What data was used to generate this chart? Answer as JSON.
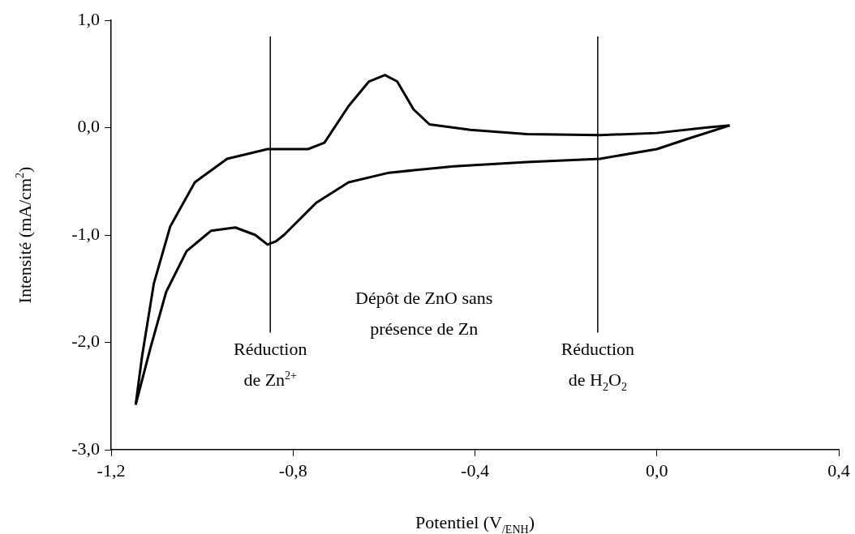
{
  "chart_data": {
    "type": "line",
    "xlabel": "Potentiel (V$_{/ENH}$)",
    "ylabel": "Intensité (mA/cm$^{2}$)",
    "xlim": [
      -1.2,
      0.4
    ],
    "xticks": [
      {
        "value": -1.2,
        "label": "-1,2"
      },
      {
        "value": -0.8,
        "label": "-0,8"
      },
      {
        "value": -0.4,
        "label": "-0,4"
      },
      {
        "value": 0,
        "label": "0,0"
      },
      {
        "value": 0.4,
        "label": "0,4"
      }
    ],
    "ylim": [
      -3,
      1
    ],
    "yticks": [
      {
        "value": -3,
        "label": "-3,0"
      },
      {
        "value": -2,
        "label": "-2,0"
      },
      {
        "value": -1,
        "label": "-1,0"
      },
      {
        "value": 0,
        "label": "0,0"
      },
      {
        "value": 1,
        "label": "1,0"
      }
    ],
    "grid": false,
    "legend": false,
    "marker": "none",
    "line_style": "solid",
    "series": [
      {
        "color": "#000000",
        "x": [
          -1.146,
          -1.132,
          -1.106,
          -1.07,
          -1.016,
          -0.945,
          -0.856,
          -0.767,
          -0.731,
          -0.678,
          -0.633,
          -0.598,
          -0.571,
          -0.535,
          -0.5,
          -0.41,
          -0.286,
          -0.125,
          0.0,
          0.107,
          0.16
        ],
        "values": [
          -2.58,
          -2.13,
          -1.45,
          -0.92,
          -0.51,
          -0.29,
          -0.2,
          -0.2,
          -0.14,
          0.2,
          0.43,
          0.49,
          0.43,
          0.17,
          0.03,
          -0.02,
          -0.06,
          -0.07,
          -0.05,
          0.0,
          0.02
        ]
      },
      {
        "color": "#000000",
        "x": [
          -1.146,
          -1.114,
          -1.079,
          -1.034,
          -0.98,
          -0.927,
          -0.883,
          -0.856,
          -0.838,
          -0.82,
          -0.749,
          -0.678,
          -0.589,
          -0.446,
          -0.286,
          -0.125,
          0.0,
          0.071,
          0.16
        ],
        "values": [
          -2.58,
          -2.06,
          -1.53,
          -1.15,
          -0.96,
          -0.93,
          -1.0,
          -1.09,
          -1.06,
          -1.0,
          -0.7,
          -0.51,
          -0.42,
          -0.36,
          -0.32,
          -0.29,
          -0.2,
          -0.1,
          0.02
        ]
      }
    ],
    "ref_lines": [
      {
        "axis": "x",
        "value": -0.85,
        "label": "Réduction de Zn$^{2+}$",
        "color": "#000000"
      },
      {
        "axis": "x",
        "value": -0.13,
        "label": "Réduction de H$_{2}$O$_{2}$",
        "color": "#000000"
      }
    ],
    "annotations": [
      "Dépôt de ZnO sans présence de Zn"
    ]
  }
}
